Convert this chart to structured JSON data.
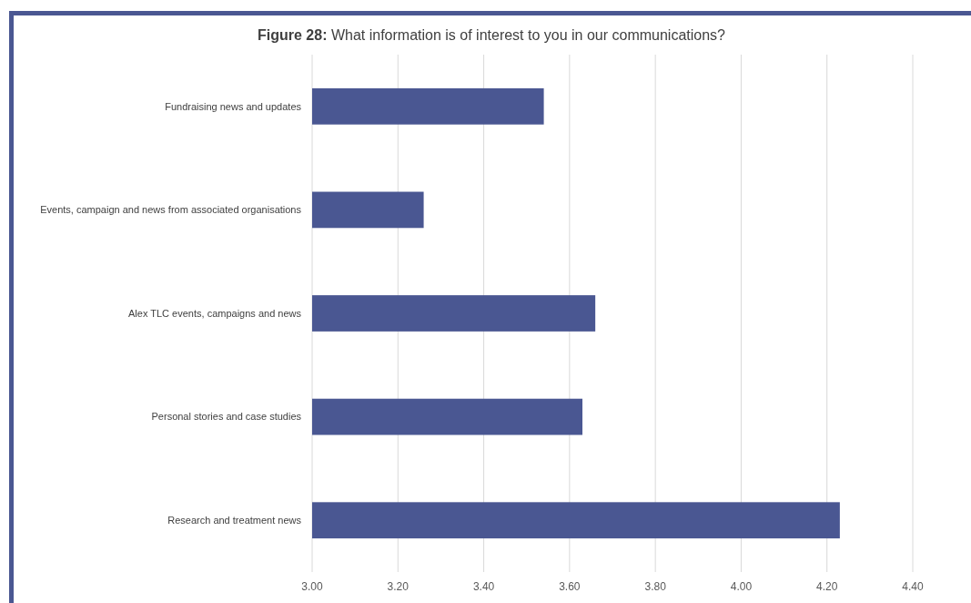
{
  "chart_data": {
    "type": "bar",
    "orientation": "horizontal",
    "title": "Figure 28: What information is of interest to you in our communications?",
    "categories": [
      "Fundraising news and updates",
      "Events, campaign and news from associated organisations",
      "Alex TLC events, campaigns and news",
      "Personal stories and case studies",
      "Research and treatment news"
    ],
    "values": [
      3.54,
      3.26,
      3.66,
      3.63,
      4.23
    ],
    "color": "#4a5792",
    "xlim": [
      3,
      4.4
    ],
    "xticks": [
      {
        "value": 3,
        "label": "3.00"
      },
      {
        "value": 3.2,
        "label": "3.20"
      },
      {
        "value": 3.4,
        "label": "3.40"
      },
      {
        "value": 3.6,
        "label": "3.60"
      },
      {
        "value": 3.8,
        "label": "3.80"
      },
      {
        "value": 4,
        "label": "4.00"
      },
      {
        "value": 4.2,
        "label": "4.20"
      },
      {
        "value": 4.4,
        "label": "4.40"
      }
    ],
    "grid": "x"
  }
}
